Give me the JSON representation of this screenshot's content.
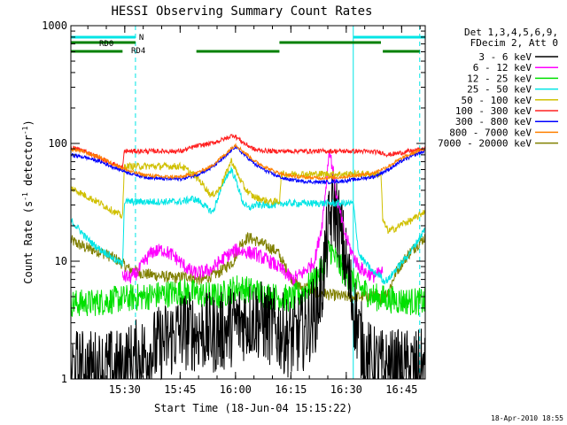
{
  "chart_data": {
    "type": "line",
    "title": "HESSI Observing Summary Count Rates",
    "xlabel": "Start Time (18-Jun-04 15:15:22)",
    "ylabel_main": "Count Rate (s",
    "ylabel_sup1": "-1",
    "ylabel_mid": " detector",
    "ylabel_sup2": "-1",
    "ylabel_end": ")",
    "y_scale": "log",
    "ylim": [
      1,
      1000
    ],
    "xlim_minutes": [
      0,
      96
    ],
    "x_tick_labels": [
      "15:30",
      "15:45",
      "16:00",
      "16:15",
      "16:30",
      "16:45"
    ],
    "x_tick_minutes": [
      14.6,
      29.6,
      44.6,
      59.6,
      74.6,
      89.6
    ],
    "y_tick_labels": [
      "1",
      "10",
      "100",
      "1000"
    ],
    "y_tick_values": [
      1,
      10,
      100,
      1000
    ],
    "legend_header": [
      "Det 1,3,4,5,6,9,",
      "FDecim 2, Att 0"
    ],
    "legend_placement": "right",
    "timestamp": "18-Apr-2010 18:55",
    "annotations": {
      "night_label": "N",
      "rd0_label": "RD0",
      "rd4_label": "RD4",
      "night_color": "#00e5e5",
      "saa_color": "#008000",
      "night_bars": [
        [
          0,
          17.5
        ],
        [
          76.5,
          96
        ]
      ],
      "saa_bars_top": [
        [
          0,
          17.5
        ],
        [
          56.5,
          84
        ]
      ],
      "saa_bars_bottom": [
        [
          0,
          14
        ],
        [
          34,
          56.5
        ],
        [
          84.5,
          94.5
        ]
      ],
      "eclipse_solid_minutes": [
        0,
        76.5
      ],
      "eclipse_dashed_minutes": [
        17.5,
        94.5
      ]
    },
    "series": [
      {
        "name": "3 - 6 keV",
        "color": "#000000",
        "x": [
          0,
          14,
          14.5,
          20,
          25,
          30,
          35,
          40,
          45,
          50,
          55,
          60,
          63,
          66,
          68,
          69,
          70,
          71,
          72,
          74,
          76,
          78,
          80,
          82,
          85,
          90,
          96
        ],
        "y": [
          1.2,
          1.2,
          1.3,
          1.6,
          2.0,
          2.6,
          2.5,
          2.4,
          3.0,
          3.3,
          2.7,
          2.2,
          2.6,
          3.5,
          6,
          12,
          20,
          30,
          25,
          12,
          5,
          2.5,
          1.5,
          1.3,
          1.2,
          1.2,
          1.2
        ]
      },
      {
        "name": "6 - 12 keV",
        "color": "#ff00ff",
        "x": [
          14,
          16,
          18,
          20,
          22,
          25,
          28,
          31,
          33,
          35,
          38,
          42,
          45,
          50,
          55,
          58,
          60,
          63,
          66,
          68,
          69,
          70,
          71,
          72,
          74,
          76,
          78,
          80,
          82,
          84.5
        ],
        "y": [
          7.5,
          7.2,
          8,
          10,
          12,
          12.5,
          11,
          9,
          8,
          8,
          8.5,
          11,
          12.5,
          11.5,
          9.5,
          8,
          7,
          8,
          10,
          20,
          40,
          88,
          60,
          35,
          18,
          12,
          9,
          8,
          7.5,
          8
        ]
      },
      {
        "name": "12 - 25 keV",
        "color": "#00e000",
        "x": [
          0,
          5,
          10,
          14,
          20,
          30,
          40,
          45,
          50,
          55,
          60,
          63,
          66,
          68,
          70,
          72,
          74,
          76,
          78,
          82,
          85,
          90,
          96
        ],
        "y": [
          4.4,
          4.4,
          4.6,
          4.8,
          5,
          5.5,
          5,
          6,
          5.5,
          5,
          4.8,
          5.5,
          7,
          8.5,
          13,
          10,
          8,
          7,
          6,
          5,
          4.8,
          4.6,
          4.5
        ]
      },
      {
        "name": "25 - 50 keV",
        "color": "#00e5e5",
        "x": [
          0,
          2,
          4,
          6,
          8,
          10,
          12,
          14,
          14.5,
          30,
          33,
          35,
          37,
          38.5,
          40,
          42,
          43.5,
          45,
          46.5,
          48,
          50,
          56.5,
          57,
          76.5,
          78,
          80,
          82,
          84,
          84.5,
          86,
          88,
          90,
          92,
          94,
          96
        ],
        "y": [
          22,
          19,
          16,
          14,
          12.5,
          11.5,
          10.2,
          9.5,
          32,
          32,
          34,
          32,
          28,
          26,
          36,
          52,
          60,
          46,
          32,
          28,
          30,
          30,
          31,
          31,
          11.5,
          9.5,
          8,
          7.5,
          6.8,
          7,
          8.5,
          10,
          12,
          15,
          19
        ]
      },
      {
        "name": "50 - 100 keV",
        "color": "#d0c000",
        "x": [
          0,
          4,
          8,
          12,
          14,
          14.5,
          30,
          32,
          34,
          36,
          38,
          40,
          42,
          43.5,
          45,
          47,
          49,
          51,
          54,
          56.5,
          57,
          76.5,
          84,
          84.5,
          86,
          88,
          90,
          92,
          94,
          96
        ],
        "y": [
          42,
          36,
          31,
          26,
          24,
          64,
          64,
          58,
          52,
          44,
          36,
          40,
          55,
          72,
          56,
          42,
          36,
          34,
          32,
          32,
          55,
          55,
          55,
          22,
          18,
          19,
          21,
          22,
          24,
          27
        ]
      },
      {
        "name": "100 - 300 keV",
        "color": "#ff2020",
        "x": [
          0,
          3,
          6,
          9,
          12,
          14,
          14.5,
          30,
          34,
          38,
          42,
          44,
          45,
          47,
          50,
          54,
          56.5,
          57,
          76.5,
          78,
          84,
          86,
          88,
          90,
          92,
          94,
          96
        ],
        "y": [
          92,
          88,
          80,
          72,
          66,
          62,
          86,
          86,
          95,
          100,
          110,
          118,
          112,
          100,
          88,
          86,
          86,
          86,
          86,
          86,
          84,
          80,
          82,
          84,
          86,
          88,
          90
        ]
      },
      {
        "name": "300 - 800 keV",
        "color": "#0000ff",
        "x": [
          0,
          4,
          8,
          12,
          16,
          20,
          25,
          30,
          34,
          38,
          42,
          44.5,
          47,
          50,
          54,
          58,
          62,
          66,
          70,
          74,
          78,
          82,
          86,
          90,
          94,
          96
        ],
        "y": [
          80,
          76,
          70,
          62,
          56,
          52,
          50,
          50,
          54,
          62,
          78,
          94,
          80,
          66,
          56,
          50,
          48,
          47,
          47,
          48,
          50,
          52,
          60,
          72,
          82,
          86
        ]
      },
      {
        "name": "800 - 7000 keV",
        "color": "#ff8000",
        "x": [
          0,
          4,
          8,
          12,
          16,
          20,
          25,
          30,
          34,
          38,
          42,
          44.5,
          47,
          50,
          54,
          58,
          62,
          66,
          70,
          74,
          78,
          82,
          86,
          90,
          94,
          96
        ],
        "y": [
          90,
          84,
          76,
          66,
          58,
          54,
          52,
          52,
          56,
          64,
          82,
          98,
          84,
          70,
          60,
          54,
          52,
          51,
          51,
          52,
          54,
          56,
          64,
          76,
          86,
          90
        ]
      },
      {
        "name": "7000 - 20000 keV",
        "color": "#808000",
        "x": [
          0,
          4,
          8,
          12,
          14,
          16,
          20,
          24,
          28,
          32,
          34,
          36,
          40,
          44,
          46,
          48,
          52,
          56,
          58,
          60,
          62,
          64,
          66,
          70,
          74,
          78,
          82,
          84,
          86,
          88,
          90,
          92,
          94,
          96
        ],
        "y": [
          15,
          13,
          12,
          10.5,
          9.5,
          8.5,
          7.8,
          7.5,
          7.2,
          7.5,
          7,
          7,
          8,
          10,
          14,
          16,
          14,
          12,
          9,
          7,
          6,
          6,
          5.5,
          5.2,
          5,
          5,
          5,
          4.8,
          5.5,
          8,
          10,
          12,
          14,
          16
        ]
      }
    ]
  }
}
